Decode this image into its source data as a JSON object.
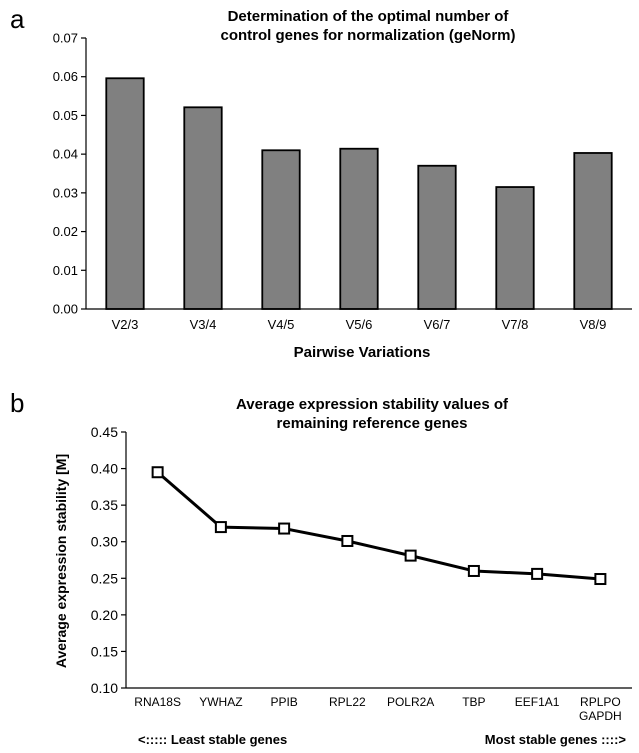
{
  "chart_data": [
    {
      "panel_label": "a",
      "type": "bar",
      "title": [
        "Determination of the optimal number of",
        "control genes for normalization (geNorm)"
      ],
      "xlabel": "Pairwise Variations",
      "ylabel": "",
      "categories": [
        "V2/3",
        "V3/4",
        "V4/5",
        "V5/6",
        "V6/7",
        "V7/8",
        "V8/9"
      ],
      "values": [
        0.0596,
        0.0521,
        0.041,
        0.0414,
        0.037,
        0.0315,
        0.0403
      ],
      "ylim": [
        0,
        0.07
      ],
      "yticks": [
        "0.00",
        "0.01",
        "0.02",
        "0.03",
        "0.04",
        "0.05",
        "0.06",
        "0.07"
      ],
      "bar_color": "#808080",
      "grid": false
    },
    {
      "panel_label": "b",
      "type": "line",
      "title": [
        "Average expression stability values of",
        "remaining reference genes"
      ],
      "xlabel": "",
      "ylabel": "Average expression stability [M]",
      "categories": [
        "RNA18S",
        "YWHAZ",
        "PPIB",
        "RPL22",
        "POLR2A",
        "TBP",
        "EEF1A1",
        [
          "RPLPO",
          "GAPDH"
        ]
      ],
      "values": [
        0.395,
        0.32,
        0.318,
        0.301,
        0.281,
        0.26,
        0.256,
        0.249
      ],
      "ylim": [
        0.1,
        0.45
      ],
      "yticks": [
        "0.10",
        "0.15",
        "0.20",
        "0.25",
        "0.30",
        "0.35",
        "0.40",
        "0.45"
      ],
      "marker": "open-square",
      "grid": false,
      "annotations": {
        "left": "<::::: Least stable genes",
        "right": "Most stable genes ::::>"
      }
    }
  ]
}
